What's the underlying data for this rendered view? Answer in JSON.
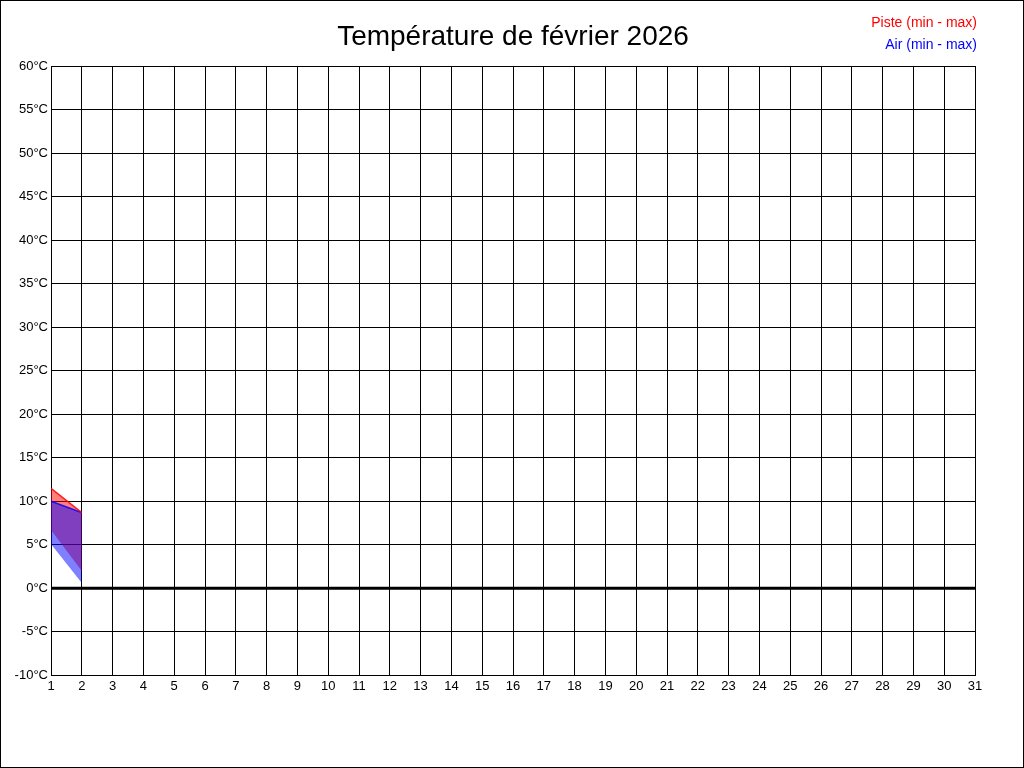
{
  "chart_data": {
    "type": "line",
    "title": "Température de février 2026",
    "xlim": [
      1,
      31
    ],
    "xticks": [
      1,
      2,
      3,
      4,
      5,
      6,
      7,
      8,
      9,
      10,
      11,
      12,
      13,
      14,
      15,
      16,
      17,
      18,
      19,
      20,
      21,
      22,
      23,
      24,
      25,
      26,
      27,
      28,
      29,
      30,
      31
    ],
    "ylim": [
      -10,
      60
    ],
    "yticks": [
      {
        "value": -10,
        "label": "-10°C"
      },
      {
        "value": -5,
        "label": "-5°C"
      },
      {
        "value": 0,
        "label": "0°C"
      },
      {
        "value": 5,
        "label": "5°C"
      },
      {
        "value": 10,
        "label": "10°C"
      },
      {
        "value": 15,
        "label": "15°C"
      },
      {
        "value": 20,
        "label": "20°C"
      },
      {
        "value": 25,
        "label": "25°C"
      },
      {
        "value": 30,
        "label": "30°C"
      },
      {
        "value": 35,
        "label": "35°C"
      },
      {
        "value": 40,
        "label": "40°C"
      },
      {
        "value": 45,
        "label": "45°C"
      },
      {
        "value": 50,
        "label": "50°C"
      },
      {
        "value": 55,
        "label": "55°C"
      },
      {
        "value": 60,
        "label": "60°C"
      }
    ],
    "x": [
      1,
      2
    ],
    "grid": true,
    "legend": "top right",
    "ref_lines": [
      {
        "axis": "y",
        "value": 0,
        "color": "#000000"
      }
    ],
    "series": [
      {
        "name": "Piste (min - max)",
        "color": "#ff0000",
        "values": [
          11.5,
          8.7
        ],
        "upper": [
          11.5,
          8.7
        ],
        "lower": [
          6.7,
          2.0
        ]
      },
      {
        "name": "Air (min - max)",
        "color": "#0000ff",
        "values": [
          10.0,
          8.7
        ],
        "upper": [
          10.0,
          8.7
        ],
        "lower": [
          5.1,
          0.6
        ]
      }
    ]
  }
}
